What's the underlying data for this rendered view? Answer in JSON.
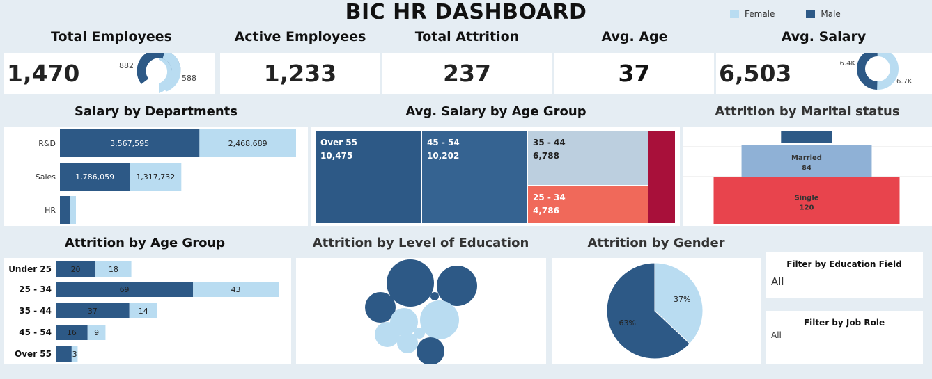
{
  "title": "BIC HR DASHBOARD",
  "legend": [
    {
      "label": "Female",
      "color": "#b9dcf1"
    },
    {
      "label": "Male",
      "color": "#2d5986"
    }
  ],
  "colors": {
    "male": "#2d5986",
    "female": "#b9dcf1"
  },
  "kpis": {
    "total_employees": {
      "label": "Total Employees",
      "value": "1,470",
      "male": "882",
      "female": "588"
    },
    "active_employees": {
      "label": "Active Employees",
      "value": "1,233"
    },
    "total_attrition": {
      "label": "Total Attrition",
      "value": "237"
    },
    "avg_age": {
      "label": "Avg. Age",
      "value": "37"
    },
    "avg_salary": {
      "label": "Avg. Salary",
      "value": "6,503",
      "male": "6.4K",
      "female": "6.7K"
    }
  },
  "sections": {
    "salary_dept": "Salary by Departments",
    "salary_age": "Avg. Salary  by Age Group",
    "attr_marital": "Attrition by Marital status",
    "attr_age": "Attrition by Age Group",
    "attr_edu": "Attrition by Level of Education",
    "attr_gender": "Attrition by Gender"
  },
  "filters": {
    "edu_field": {
      "label": "Filter by Education Field",
      "value": "All"
    },
    "job_role": {
      "label": "Filter by Job Role",
      "value": "All"
    }
  },
  "chart_data": [
    {
      "id": "salary_by_departments",
      "type": "bar",
      "orientation": "horizontal",
      "stacked": true,
      "categories": [
        "R&D",
        "Sales",
        "HR"
      ],
      "series": [
        {
          "name": "Male",
          "values": [
            3567595,
            1786059,
            150000
          ],
          "labels": [
            "3,567,595",
            "1,786,059",
            ""
          ]
        },
        {
          "name": "Female",
          "values": [
            2468689,
            1317732,
            90000
          ],
          "labels": [
            "2,468,689",
            "1,317,732",
            ""
          ]
        }
      ]
    },
    {
      "id": "avg_salary_by_age_group",
      "type": "treemap",
      "items": [
        {
          "label": "Over 55",
          "value": 10475,
          "text": "10,475",
          "color": "#2d5986"
        },
        {
          "label": "45 - 54",
          "value": 10202,
          "text": "10,202",
          "color": "#356391"
        },
        {
          "label": "35 - 44",
          "value": 6788,
          "text": "6,788",
          "color": "#bccfdf"
        },
        {
          "label": "25 - 34",
          "value": 4786,
          "text": "4,786",
          "color": "#f0695a"
        },
        {
          "label": "",
          "value": 2400,
          "text": "",
          "color": "#a8103a"
        }
      ]
    },
    {
      "id": "attrition_by_marital_status",
      "type": "bar",
      "style": "funnel",
      "categories": [
        "",
        "Married",
        "Single"
      ],
      "values": [
        33,
        84,
        120
      ],
      "labels": [
        "",
        "84",
        "120"
      ],
      "colors": [
        "#2d5986",
        "#8fb1d6",
        "#e8444d"
      ]
    },
    {
      "id": "attrition_by_age_group",
      "type": "bar",
      "orientation": "horizontal",
      "stacked": true,
      "categories": [
        "Under 25",
        "25 - 34",
        "35 - 44",
        "45 - 54",
        "Over 55"
      ],
      "series": [
        {
          "name": "Male",
          "values": [
            20,
            69,
            37,
            16,
            8
          ],
          "labels": [
            "20",
            "69",
            "37",
            "16",
            ""
          ]
        },
        {
          "name": "Female",
          "values": [
            18,
            43,
            14,
            9,
            3
          ],
          "labels": [
            "18",
            "43",
            "14",
            "9",
            "3"
          ]
        }
      ]
    },
    {
      "id": "attrition_by_level_of_education",
      "type": "scatter",
      "style": "bubble",
      "points": [
        {
          "r": 34,
          "color": "#2d5986"
        },
        {
          "r": 29,
          "color": "#2d5986"
        },
        {
          "r": 22,
          "color": "#2d5986"
        },
        {
          "r": 28,
          "color": "#b9dcf1"
        },
        {
          "r": 20,
          "color": "#b9dcf1"
        },
        {
          "r": 18,
          "color": "#b9dcf1"
        },
        {
          "r": 15,
          "color": "#b9dcf1"
        },
        {
          "r": 20,
          "color": "#2d5986"
        },
        {
          "r": 8,
          "color": "#b9dcf1"
        },
        {
          "r": 6,
          "color": "#2d5986"
        }
      ]
    },
    {
      "id": "attrition_by_gender",
      "type": "pie",
      "slices": [
        {
          "name": "Male",
          "value": 63,
          "label": "63%",
          "color": "#2d5986"
        },
        {
          "name": "Female",
          "value": 37,
          "label": "37%",
          "color": "#b9dcf1"
        }
      ]
    }
  ]
}
